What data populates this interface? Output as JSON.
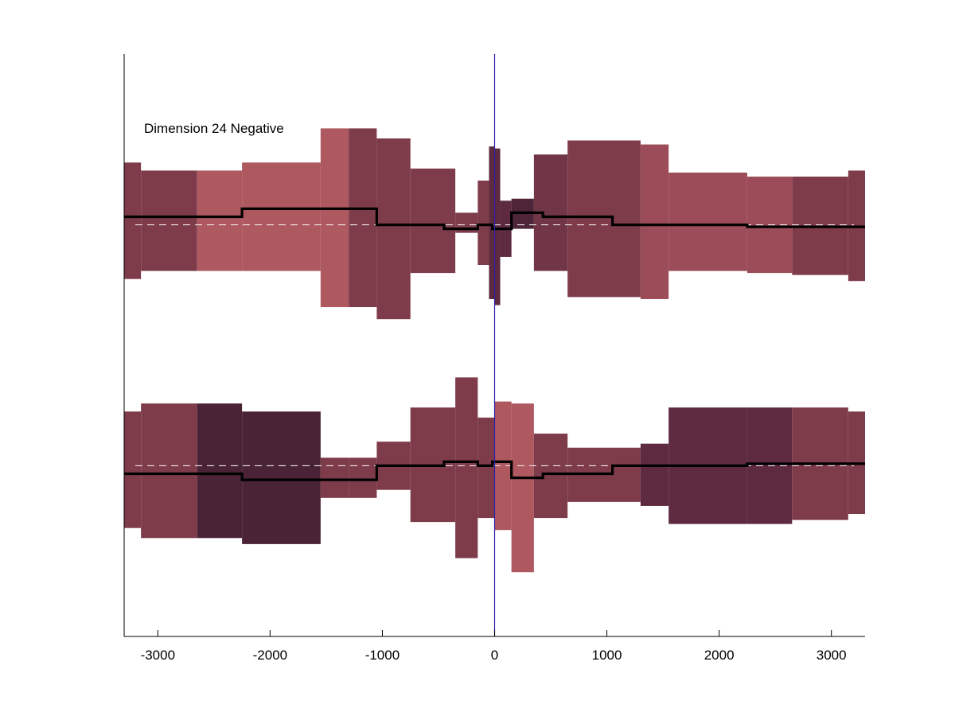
{
  "chart_data": {
    "type": "area",
    "title": "",
    "annotation": "Dimension 24 Negative",
    "xlabel": "",
    "ylabel": "",
    "xlim": [
      -3300,
      3300
    ],
    "xticks": [
      -3000,
      -2000,
      -1000,
      0,
      1000,
      2000,
      3000
    ],
    "xtick_labels": [
      "-3000",
      "-2000",
      "-1000",
      "0",
      "1000",
      "2000",
      "3000"
    ],
    "yticks_shown": false,
    "grid": false,
    "legend": "none",
    "ylim": [
      -1.45,
      1.45
    ],
    "vertical_marker": {
      "x": 0,
      "color": "#2a1fa8"
    },
    "panels": [
      {
        "name": "upper",
        "baseline": 0.6,
        "mean_line": [
          [
            -3300,
            0.64
          ],
          [
            -2250,
            0.64
          ],
          [
            -2250,
            0.68
          ],
          [
            -1050,
            0.68
          ],
          [
            -1050,
            0.6
          ],
          [
            -450,
            0.6
          ],
          [
            -450,
            0.58
          ],
          [
            -150,
            0.58
          ],
          [
            -150,
            0.6
          ],
          [
            -20,
            0.6
          ],
          [
            -20,
            0.58
          ],
          [
            150,
            0.58
          ],
          [
            150,
            0.66
          ],
          [
            430,
            0.66
          ],
          [
            430,
            0.64
          ],
          [
            1050,
            0.64
          ],
          [
            1050,
            0.6
          ],
          [
            2250,
            0.6
          ],
          [
            2250,
            0.59
          ],
          [
            3300,
            0.59
          ]
        ],
        "bands": [
          {
            "x0": -3300,
            "x1": -3150,
            "upper": 0.91,
            "lower": 0.33,
            "color": "#7e3b4a"
          },
          {
            "x0": -3150,
            "x1": -2650,
            "upper": 0.87,
            "lower": 0.37,
            "color": "#7e3b4a"
          },
          {
            "x0": -2650,
            "x1": -2250,
            "upper": 0.87,
            "lower": 0.37,
            "color": "#ae5860"
          },
          {
            "x0": -2250,
            "x1": -1550,
            "upper": 0.91,
            "lower": 0.37,
            "color": "#ae5860"
          },
          {
            "x0": -1550,
            "x1": -1300,
            "upper": 1.08,
            "lower": 0.19,
            "color": "#ae5860"
          },
          {
            "x0": -1300,
            "x1": -1050,
            "upper": 1.08,
            "lower": 0.19,
            "color": "#7e3b4a"
          },
          {
            "x0": -1050,
            "x1": -750,
            "upper": 1.03,
            "lower": 0.13,
            "color": "#7e3b4a"
          },
          {
            "x0": -750,
            "x1": -350,
            "upper": 0.88,
            "lower": 0.36,
            "color": "#7e3b4a"
          },
          {
            "x0": -350,
            "x1": -150,
            "upper": 0.66,
            "lower": 0.56,
            "color": "#7e3b4a"
          },
          {
            "x0": -150,
            "x1": -50,
            "upper": 0.82,
            "lower": 0.4,
            "color": "#7e3b4a"
          },
          {
            "x0": -50,
            "x1": 0,
            "upper": 0.99,
            "lower": 0.23,
            "color": "#5e2a40"
          },
          {
            "x0": 0,
            "x1": 50,
            "upper": 0.98,
            "lower": 0.2,
            "color": "#5e2a40"
          },
          {
            "x0": 50,
            "x1": 150,
            "upper": 0.72,
            "lower": 0.44,
            "color": "#5e2a40"
          },
          {
            "x0": 150,
            "x1": 350,
            "upper": 0.73,
            "lower": 0.58,
            "color": "#4e2439"
          },
          {
            "x0": 350,
            "x1": 650,
            "upper": 0.95,
            "lower": 0.37,
            "color": "#713645"
          },
          {
            "x0": 650,
            "x1": 1300,
            "upper": 1.02,
            "lower": 0.24,
            "color": "#7e3b4a"
          },
          {
            "x0": 1300,
            "x1": 1550,
            "upper": 1.0,
            "lower": 0.23,
            "color": "#9c4c58"
          },
          {
            "x0": 1550,
            "x1": 2250,
            "upper": 0.86,
            "lower": 0.37,
            "color": "#9c4c58"
          },
          {
            "x0": 2250,
            "x1": 2650,
            "upper": 0.84,
            "lower": 0.36,
            "color": "#9c4c58"
          },
          {
            "x0": 2650,
            "x1": 3150,
            "upper": 0.84,
            "lower": 0.35,
            "color": "#7e3b4a"
          },
          {
            "x0": 3150,
            "x1": 3300,
            "upper": 0.87,
            "lower": 0.32,
            "color": "#7e3b4a"
          }
        ]
      },
      {
        "name": "lower",
        "baseline": -0.6,
        "mean_line": [
          [
            -3300,
            -0.64
          ],
          [
            -2250,
            -0.64
          ],
          [
            -2250,
            -0.67
          ],
          [
            -1050,
            -0.67
          ],
          [
            -1050,
            -0.6
          ],
          [
            -450,
            -0.6
          ],
          [
            -450,
            -0.58
          ],
          [
            -150,
            -0.58
          ],
          [
            -150,
            -0.6
          ],
          [
            -20,
            -0.6
          ],
          [
            -20,
            -0.58
          ],
          [
            150,
            -0.58
          ],
          [
            150,
            -0.66
          ],
          [
            430,
            -0.66
          ],
          [
            430,
            -0.64
          ],
          [
            1050,
            -0.64
          ],
          [
            1050,
            -0.6
          ],
          [
            2250,
            -0.6
          ],
          [
            2250,
            -0.59
          ],
          [
            3300,
            -0.59
          ]
        ],
        "bands": [
          {
            "x0": -3300,
            "x1": -3150,
            "upper": -0.33,
            "lower": -0.91,
            "color": "#7e3b4a"
          },
          {
            "x0": -3150,
            "x1": -2650,
            "upper": -0.29,
            "lower": -0.96,
            "color": "#7e3b4a"
          },
          {
            "x0": -2650,
            "x1": -2250,
            "upper": -0.29,
            "lower": -0.96,
            "color": "#4a2336"
          },
          {
            "x0": -2250,
            "x1": -1550,
            "upper": -0.33,
            "lower": -0.99,
            "color": "#4a2336"
          },
          {
            "x0": -1550,
            "x1": -1300,
            "upper": -0.56,
            "lower": -0.76,
            "color": "#7e3b4a"
          },
          {
            "x0": -1300,
            "x1": -1050,
            "upper": -0.56,
            "lower": -0.76,
            "color": "#7e3b4a"
          },
          {
            "x0": -1050,
            "x1": -750,
            "upper": -0.48,
            "lower": -0.72,
            "color": "#7e3b4a"
          },
          {
            "x0": -750,
            "x1": -350,
            "upper": -0.31,
            "lower": -0.88,
            "color": "#7e3b4a"
          },
          {
            "x0": -350,
            "x1": -150,
            "upper": -0.16,
            "lower": -1.06,
            "color": "#7e3b4a"
          },
          {
            "x0": -150,
            "x1": 0,
            "upper": -0.36,
            "lower": -0.86,
            "color": "#7e3b4a"
          },
          {
            "x0": 0,
            "x1": 150,
            "upper": -0.28,
            "lower": -0.92,
            "color": "#ae5860"
          },
          {
            "x0": 150,
            "x1": 350,
            "upper": -0.29,
            "lower": -1.13,
            "color": "#ae5860"
          },
          {
            "x0": 350,
            "x1": 650,
            "upper": -0.44,
            "lower": -0.86,
            "color": "#7e3b4a"
          },
          {
            "x0": 650,
            "x1": 1300,
            "upper": -0.51,
            "lower": -0.78,
            "color": "#7e3b4a"
          },
          {
            "x0": 1300,
            "x1": 1550,
            "upper": -0.49,
            "lower": -0.8,
            "color": "#5e2a40"
          },
          {
            "x0": 1550,
            "x1": 2250,
            "upper": -0.31,
            "lower": -0.89,
            "color": "#5e2a40"
          },
          {
            "x0": 2250,
            "x1": 2650,
            "upper": -0.31,
            "lower": -0.89,
            "color": "#5e2a40"
          },
          {
            "x0": 2650,
            "x1": 3150,
            "upper": -0.31,
            "lower": -0.87,
            "color": "#7e3b4a"
          },
          {
            "x0": 3150,
            "x1": 3300,
            "upper": -0.33,
            "lower": -0.84,
            "color": "#7e3b4a"
          }
        ]
      }
    ]
  },
  "colors": {
    "axis": "#000000",
    "mean_line": "#000000",
    "baseline_dash": "#f0e6e8",
    "vertical_marker": "#2a1fa8"
  }
}
